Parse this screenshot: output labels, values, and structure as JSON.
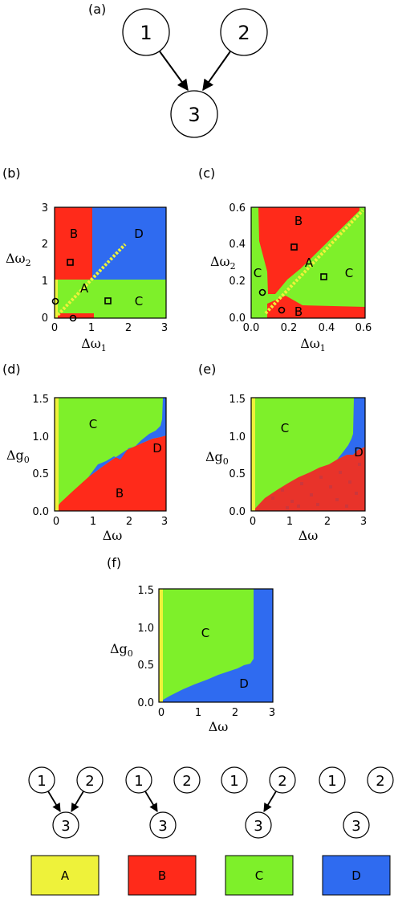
{
  "colors": {
    "A": "#eef23a",
    "B": "#ff2a1a",
    "C": "#7ef02a",
    "D": "#2f6bf0"
  },
  "panel_a": {
    "label": "(a)",
    "nodes": [
      "1",
      "2",
      "3"
    ]
  },
  "panel_b": {
    "label": "(b)",
    "xlabel": "Δω",
    "xsub": "1",
    "ylabel": "Δω",
    "ysub": "2",
    "xticks": [
      "0",
      "1",
      "2",
      "3"
    ],
    "yticks": [
      "0",
      "1",
      "2",
      "3"
    ],
    "regions": [
      "A",
      "B",
      "C",
      "D"
    ]
  },
  "panel_c": {
    "label": "(c)",
    "xlabel": "Δω",
    "xsub": "1",
    "ylabel": "Δω",
    "ysub": "2",
    "xticks": [
      "0.0",
      "0.2",
      "0.4",
      "0.6"
    ],
    "yticks": [
      "0.0",
      "0.2",
      "0.4",
      "0.6"
    ],
    "regions": [
      "A",
      "B",
      "B",
      "C",
      "C"
    ]
  },
  "panel_d": {
    "label": "(d)",
    "xlabel": "Δω",
    "ylabel": "Δg",
    "ysub": "0",
    "xticks": [
      "0",
      "1",
      "2",
      "3"
    ],
    "yticks": [
      "0.0",
      "0.5",
      "1.0",
      "1.5"
    ],
    "regions": [
      "B",
      "C",
      "D"
    ]
  },
  "panel_e": {
    "label": "(e)",
    "xlabel": "Δω",
    "ylabel": "Δg",
    "ysub": "0",
    "xticks": [
      "0",
      "1",
      "2",
      "3"
    ],
    "yticks": [
      "0.0",
      "0.5",
      "1.0",
      "1.5"
    ],
    "regions": [
      "C",
      "D"
    ]
  },
  "panel_f": {
    "label": "(f)",
    "xlabel": "Δω",
    "ylabel": "Δg",
    "ysub": "0",
    "xticks": [
      "0",
      "1",
      "2",
      "3"
    ],
    "yticks": [
      "0.0",
      "0.5",
      "1.0",
      "1.5"
    ],
    "regions": [
      "C",
      "D"
    ]
  },
  "legend": [
    {
      "nodes": [
        "1",
        "2",
        "3"
      ],
      "label": "A"
    },
    {
      "nodes": [
        "1",
        "2",
        "3"
      ],
      "label": "B"
    },
    {
      "nodes": [
        "1",
        "2",
        "3"
      ],
      "label": "C"
    },
    {
      "nodes": [
        "1",
        "2",
        "3"
      ],
      "label": "D"
    }
  ]
}
